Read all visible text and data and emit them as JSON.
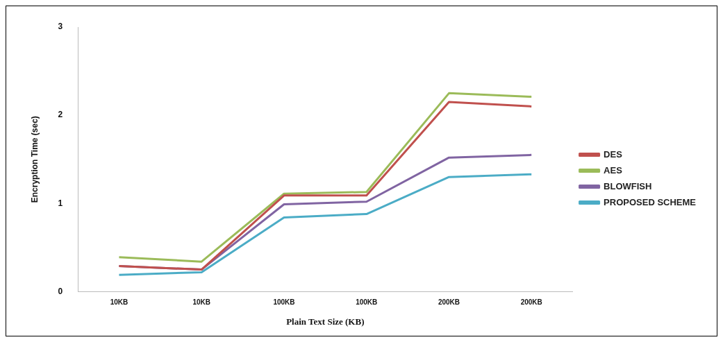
{
  "chart_data": {
    "type": "line",
    "xlabel": "Plain Text Size (KB)",
    "ylabel": "Encryption Time (sec)",
    "categories": [
      "10KB",
      "10KB",
      "100KB",
      "100KB",
      "200KB",
      "200KB"
    ],
    "series": [
      {
        "name": "DES",
        "color": "#c0504d",
        "values": [
          0.29,
          0.25,
          1.09,
          1.09,
          2.15,
          2.1
        ]
      },
      {
        "name": "AES",
        "color": "#9bbb59",
        "values": [
          0.39,
          0.34,
          1.11,
          1.13,
          2.25,
          2.21
        ]
      },
      {
        "name": "BLOWFISH",
        "color": "#8064a2",
        "values": [
          0.29,
          0.25,
          0.99,
          1.02,
          1.52,
          1.55
        ]
      },
      {
        "name": "PROPOSED SCHEME",
        "color": "#4bacc6",
        "values": [
          0.19,
          0.22,
          0.84,
          0.88,
          1.3,
          1.33
        ]
      }
    ],
    "ylim": [
      0,
      3
    ],
    "yticks": [
      0,
      1,
      2,
      3
    ],
    "grid": false,
    "legend": "right",
    "marker": "none",
    "line_style": "solid"
  }
}
